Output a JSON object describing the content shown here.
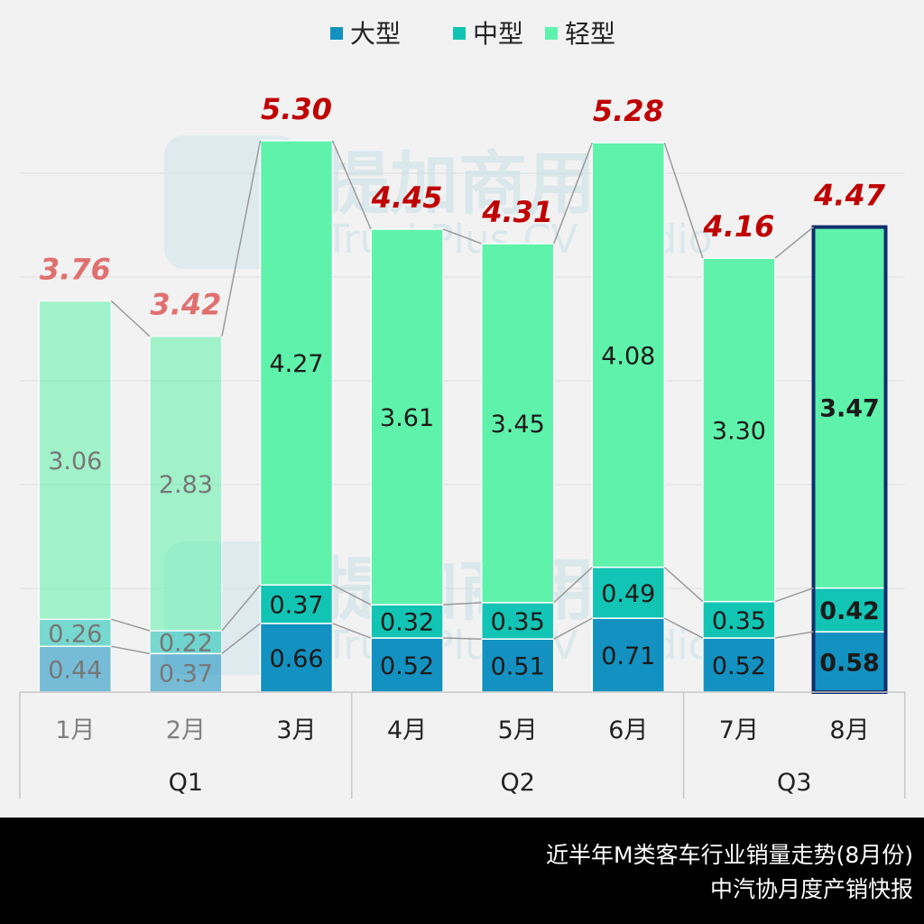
{
  "chart_data": {
    "type": "bar",
    "stacked": true,
    "legend": {
      "position": "top-center",
      "entries": [
        {
          "name": "大型",
          "color": "#1391c0"
        },
        {
          "name": "中型",
          "color": "#12c4b4"
        },
        {
          "name": "轻型",
          "color": "#5ff2ab"
        }
      ]
    },
    "categories": [
      "1月",
      "2月",
      "3月",
      "4月",
      "5月",
      "6月",
      "7月",
      "8月"
    ],
    "quarters": [
      {
        "label": "Q1",
        "months": 3
      },
      {
        "label": "Q2",
        "months": 3
      },
      {
        "label": "Q3",
        "months": 2
      }
    ],
    "series": [
      {
        "name": "大型",
        "values": [
          0.44,
          0.37,
          0.66,
          0.52,
          0.51,
          0.71,
          0.52,
          0.58
        ],
        "labels": [
          "0.44",
          "0.37",
          "0.66",
          "0.52",
          "0.51",
          "0.71",
          "0.52",
          "0.58"
        ]
      },
      {
        "name": "中型",
        "values": [
          0.26,
          0.22,
          0.37,
          0.32,
          0.35,
          0.49,
          0.35,
          0.42
        ],
        "labels": [
          "0.26",
          "0.22",
          "0.37",
          "0.32",
          "0.35",
          "0.49",
          "0.35",
          "0.42"
        ]
      },
      {
        "name": "轻型",
        "values": [
          3.06,
          2.83,
          4.27,
          3.61,
          3.45,
          4.08,
          3.3,
          3.47
        ],
        "labels": [
          "3.06",
          "2.83",
          "4.27",
          "3.61",
          "3.45",
          "4.08",
          "3.30",
          "3.47"
        ]
      }
    ],
    "totals": [
      3.76,
      3.42,
      5.3,
      4.45,
      4.31,
      5.28,
      4.16,
      4.47
    ],
    "total_labels": [
      "3.76",
      "3.42",
      "5.30",
      "4.45",
      "4.31",
      "5.28",
      "4.16",
      "4.47"
    ],
    "faded_months": [
      "1月",
      "2月"
    ],
    "highlight_month": "8月",
    "ylim": [
      0,
      5.3
    ],
    "grid": true,
    "total_label_color": "#c00000",
    "faded_total_label_color": "#e07070",
    "highlight_border_color": "#0f2d6b"
  },
  "watermark": {
    "brand_cn": "提加商用车",
    "brand_en": "TruckPlus CV studio"
  },
  "footer": {
    "title": "近半年M类客车行业销量走势(8月份)",
    "source": "中汽协月度产销快报"
  }
}
